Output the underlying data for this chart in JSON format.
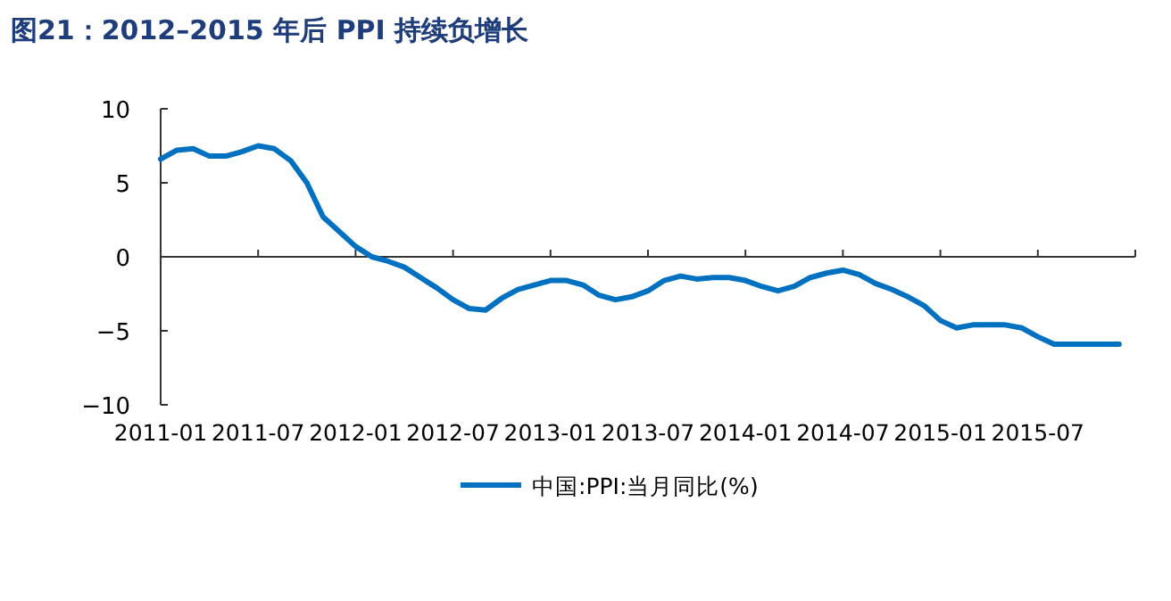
{
  "chart_data": {
    "type": "line",
    "title": "图21：2012–2015 年后 PPI 持续负增长",
    "x": [
      "2011-01",
      "2011-02",
      "2011-03",
      "2011-04",
      "2011-05",
      "2011-06",
      "2011-07",
      "2011-08",
      "2011-09",
      "2011-10",
      "2011-11",
      "2011-12",
      "2012-01",
      "2012-02",
      "2012-03",
      "2012-04",
      "2012-05",
      "2012-06",
      "2012-07",
      "2012-08",
      "2012-09",
      "2012-10",
      "2012-11",
      "2012-12",
      "2013-01",
      "2013-02",
      "2013-03",
      "2013-04",
      "2013-05",
      "2013-06",
      "2013-07",
      "2013-08",
      "2013-09",
      "2013-10",
      "2013-11",
      "2013-12",
      "2014-01",
      "2014-02",
      "2014-03",
      "2014-04",
      "2014-05",
      "2014-06",
      "2014-07",
      "2014-08",
      "2014-09",
      "2014-10",
      "2014-11",
      "2014-12",
      "2015-01",
      "2015-02",
      "2015-03",
      "2015-04",
      "2015-05",
      "2015-06",
      "2015-07",
      "2015-08",
      "2015-09",
      "2015-10",
      "2015-11",
      "2015-12"
    ],
    "series": [
      {
        "name": "中国:PPI:当月同比(%)",
        "color": "#0070c0",
        "values": [
          6.6,
          7.2,
          7.3,
          6.8,
          6.8,
          7.1,
          7.5,
          7.3,
          6.5,
          5.0,
          2.7,
          1.7,
          0.7,
          0.0,
          -0.3,
          -0.7,
          -1.4,
          -2.1,
          -2.9,
          -3.5,
          -3.6,
          -2.8,
          -2.2,
          -1.9,
          -1.6,
          -1.6,
          -1.9,
          -2.6,
          -2.9,
          -2.7,
          -2.3,
          -1.6,
          -1.3,
          -1.5,
          -1.4,
          -1.4,
          -1.6,
          -2.0,
          -2.3,
          -2.0,
          -1.4,
          -1.1,
          -0.9,
          -1.2,
          -1.8,
          -2.2,
          -2.7,
          -3.3,
          -4.3,
          -4.8,
          -4.6,
          -4.6,
          -4.6,
          -4.8,
          -5.4,
          -5.9,
          -5.9,
          -5.9,
          -5.9,
          -5.9
        ]
      }
    ],
    "xlim": [
      "2011-01",
      "2016-01"
    ],
    "xticks": [
      "2011-01",
      "2011-07",
      "2012-01",
      "2012-07",
      "2013-01",
      "2013-07",
      "2014-01",
      "2014-07",
      "2015-01",
      "2015-07",
      {
        "value": "2016-01",
        "label": null
      }
    ],
    "ylim": [
      -10,
      10
    ],
    "yticks": [
      -10,
      -5,
      0,
      5,
      10
    ],
    "legend": "bottom",
    "marker": "none",
    "line_style": "solid"
  }
}
